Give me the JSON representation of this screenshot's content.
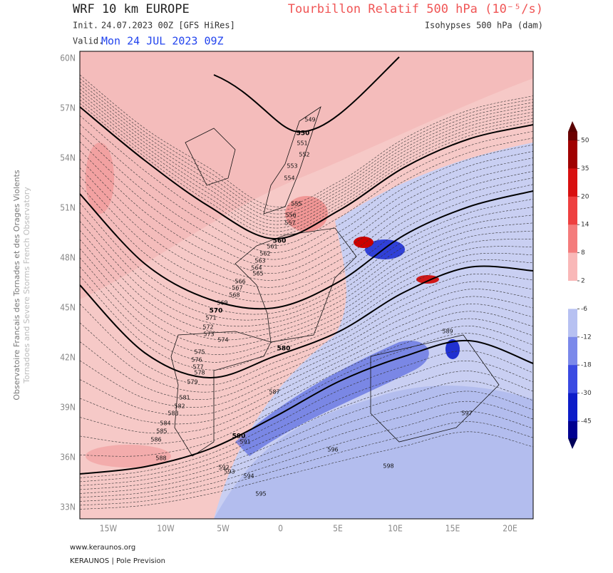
{
  "header": {
    "title": "WRF 10 km EUROPE",
    "init_label": "Init.",
    "init": "24.07.2023 00Z [GFS HiRes]",
    "valid_label": "Valid.",
    "valid": "Mon 24 JUL 2023 09Z",
    "field": "Tourbillon Relatif 500 hPa (10⁻⁵/s)",
    "contours": "Isohypses 500 hPa (dam)"
  },
  "map": {
    "lat_labels": [
      "60N",
      "57N",
      "54N",
      "51N",
      "48N",
      "45N",
      "42N",
      "39N",
      "36N",
      "33N"
    ],
    "lon_labels": [
      "15W",
      "10W",
      "5W",
      "0",
      "5E",
      "10E",
      "15E",
      "20E"
    ],
    "bold_contour_labels": [
      550,
      560,
      570,
      580,
      590
    ],
    "contour_labels": [
      549,
      551,
      552,
      553,
      554,
      555,
      556,
      557,
      561,
      562,
      563,
      564,
      565,
      566,
      567,
      568,
      569,
      571,
      572,
      573,
      574,
      575,
      576,
      577,
      578,
      579,
      581,
      582,
      583,
      584,
      585,
      586,
      587,
      588,
      589,
      591,
      592,
      593,
      594,
      595,
      596,
      597,
      598
    ]
  },
  "colorbar": {
    "ticks": [
      50,
      35,
      20,
      14,
      8,
      2,
      -6,
      -12,
      -18,
      -30,
      -45
    ]
  },
  "side": {
    "org_fr": "Observatoire Francais des Tornades et des Orages Violents",
    "org_en": "Tornadoes and Severe Storms French Observatory"
  },
  "footer": {
    "url": "www.keraunos.org",
    "credit": "KERAUNOS | Pole Prevision"
  }
}
